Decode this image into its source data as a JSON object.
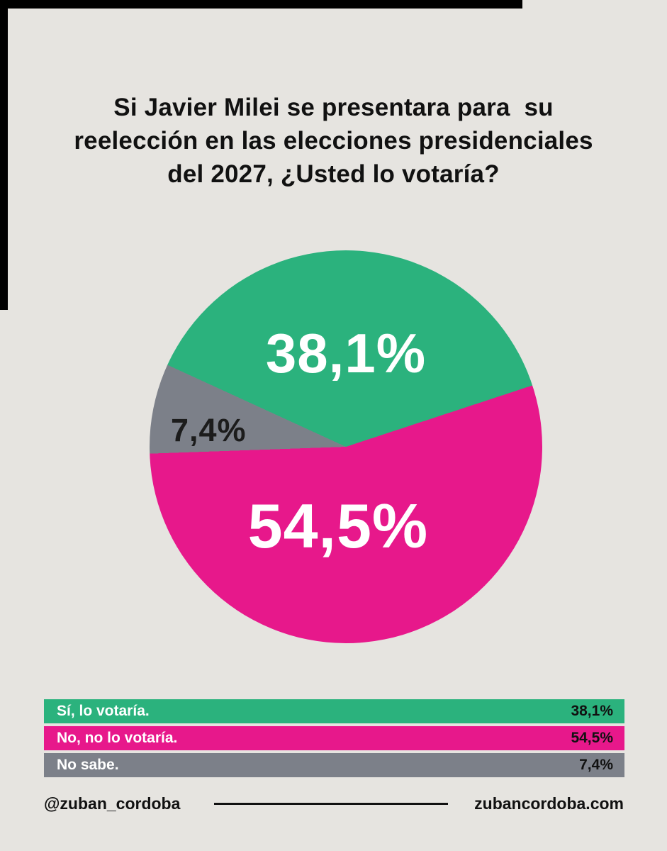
{
  "title": {
    "lines": [
      "Si Javier Milei se presentara para  su",
      "reelección en las elecciones presidenciales",
      "del 2027, ¿Usted lo votaría?"
    ]
  },
  "chart_data": {
    "type": "pie",
    "title": "Si Javier Milei se presentara para su reelección en las elecciones presidenciales del 2027, ¿Usted lo votaría?",
    "legend_position": "bottom",
    "slices": [
      {
        "label": "Sí, lo votaría.",
        "value": 38.1,
        "display": "38,1%",
        "color": "#2bb27d"
      },
      {
        "label": "No, no lo votaría.",
        "value": 54.5,
        "display": "54,5%",
        "color": "#e7188b"
      },
      {
        "label": "No sabe.",
        "value": 7.4,
        "display": "7,4%",
        "color": "#7c8089"
      }
    ]
  },
  "footer": {
    "handle": "@zuban_cordoba",
    "website": "zubancordoba.com"
  },
  "colors": {
    "background": "#e6e4e0",
    "text": "#111111",
    "pie_label_light": "#ffffff",
    "pie_label_dark": "#1c1c1c"
  }
}
